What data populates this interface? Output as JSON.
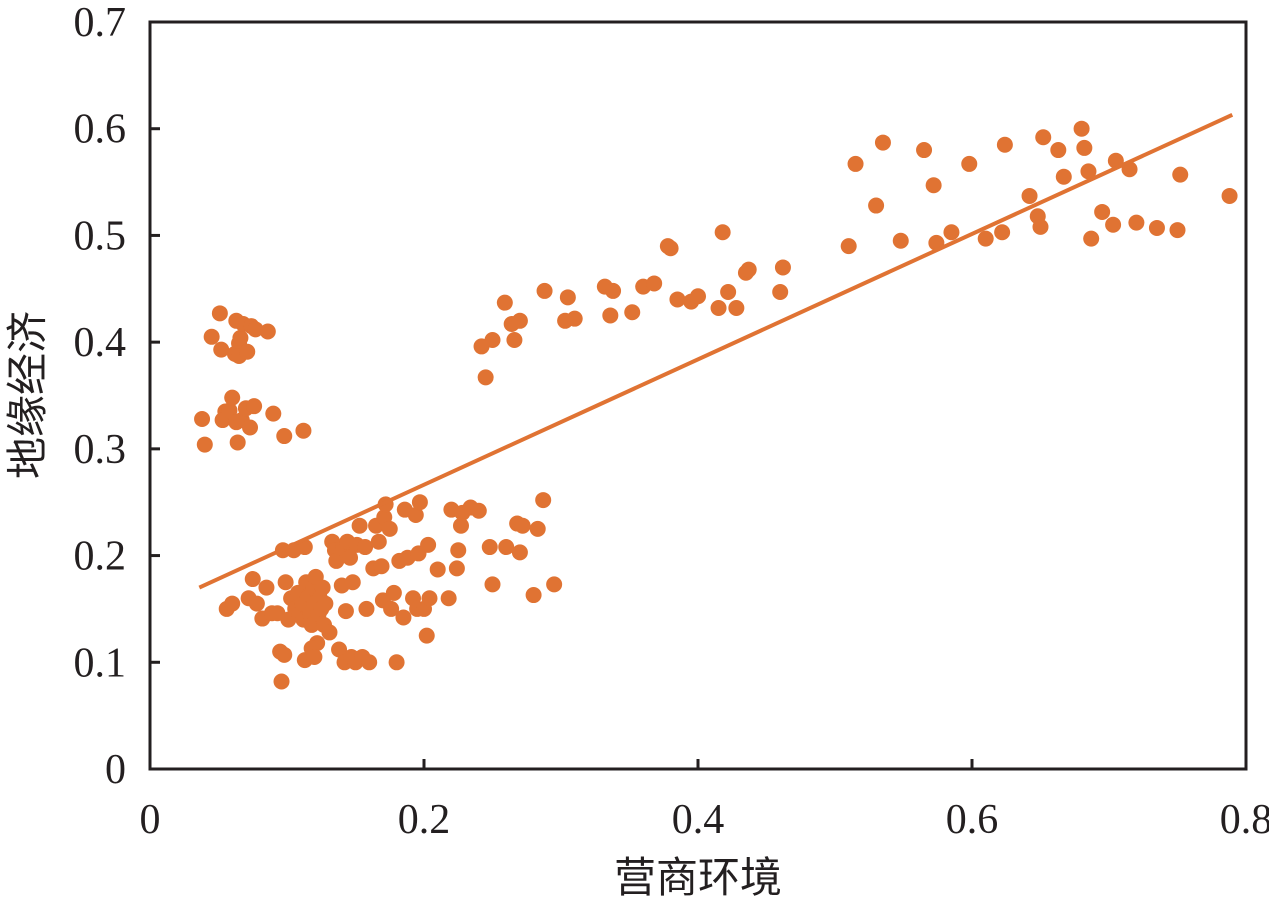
{
  "chart_data": {
    "type": "scatter",
    "title": "",
    "xlabel": "营商环境",
    "ylabel": "地缘经济",
    "xlim": [
      0,
      0.8
    ],
    "ylim": [
      0,
      0.7
    ],
    "x_ticks": [
      "0",
      "0.2",
      "0.4",
      "0.6",
      "0.8"
    ],
    "y_ticks": [
      "0",
      "0.1",
      "0.2",
      "0.3",
      "0.4",
      "0.5",
      "0.6",
      "0.7"
    ],
    "grid": false,
    "legend": "none",
    "colors": {
      "points": "#e07333",
      "fit_line": "#e07333",
      "axis": "#231f20"
    },
    "series": [
      {
        "values": [
          [
            0.038,
            0.328
          ],
          [
            0.04,
            0.304
          ],
          [
            0.045,
            0.405
          ],
          [
            0.051,
            0.427
          ],
          [
            0.052,
            0.393
          ],
          [
            0.055,
            0.335
          ],
          [
            0.053,
            0.327
          ],
          [
            0.058,
            0.336
          ],
          [
            0.06,
            0.348
          ],
          [
            0.062,
            0.389
          ],
          [
            0.063,
            0.42
          ],
          [
            0.065,
            0.399
          ],
          [
            0.065,
            0.387
          ],
          [
            0.066,
            0.404
          ],
          [
            0.068,
            0.417
          ],
          [
            0.071,
            0.391
          ],
          [
            0.074,
            0.415
          ],
          [
            0.077,
            0.412
          ],
          [
            0.086,
            0.41
          ],
          [
            0.063,
            0.325
          ],
          [
            0.067,
            0.327
          ],
          [
            0.07,
            0.338
          ],
          [
            0.073,
            0.32
          ],
          [
            0.076,
            0.34
          ],
          [
            0.064,
            0.306
          ],
          [
            0.09,
            0.333
          ],
          [
            0.098,
            0.312
          ],
          [
            0.112,
            0.317
          ],
          [
            0.056,
            0.15
          ],
          [
            0.06,
            0.155
          ],
          [
            0.072,
            0.16
          ],
          [
            0.075,
            0.178
          ],
          [
            0.078,
            0.155
          ],
          [
            0.082,
            0.141
          ],
          [
            0.085,
            0.17
          ],
          [
            0.089,
            0.146
          ],
          [
            0.093,
            0.146
          ],
          [
            0.097,
            0.205
          ],
          [
            0.099,
            0.175
          ],
          [
            0.101,
            0.14
          ],
          [
            0.103,
            0.16
          ],
          [
            0.105,
            0.205
          ],
          [
            0.106,
            0.15
          ],
          [
            0.108,
            0.165
          ],
          [
            0.109,
            0.145
          ],
          [
            0.111,
            0.155
          ],
          [
            0.112,
            0.14
          ],
          [
            0.113,
            0.208
          ],
          [
            0.114,
            0.175
          ],
          [
            0.115,
            0.16
          ],
          [
            0.116,
            0.15
          ],
          [
            0.117,
            0.145
          ],
          [
            0.118,
            0.135
          ],
          [
            0.119,
            0.17
          ],
          [
            0.12,
            0.155
          ],
          [
            0.121,
            0.18
          ],
          [
            0.122,
            0.118
          ],
          [
            0.123,
            0.145
          ],
          [
            0.124,
            0.16
          ],
          [
            0.125,
            0.15
          ],
          [
            0.126,
            0.17
          ],
          [
            0.127,
            0.135
          ],
          [
            0.128,
            0.155
          ],
          [
            0.131,
            0.128
          ],
          [
            0.133,
            0.213
          ],
          [
            0.135,
            0.205
          ],
          [
            0.136,
            0.195
          ],
          [
            0.138,
            0.112
          ],
          [
            0.14,
            0.172
          ],
          [
            0.141,
            0.207
          ],
          [
            0.142,
            0.1
          ],
          [
            0.143,
            0.148
          ],
          [
            0.144,
            0.213
          ],
          [
            0.146,
            0.198
          ],
          [
            0.147,
            0.105
          ],
          [
            0.148,
            0.175
          ],
          [
            0.15,
            0.1
          ],
          [
            0.151,
            0.21
          ],
          [
            0.153,
            0.228
          ],
          [
            0.155,
            0.105
          ],
          [
            0.157,
            0.208
          ],
          [
            0.158,
            0.15
          ],
          [
            0.16,
            0.1
          ],
          [
            0.163,
            0.188
          ],
          [
            0.165,
            0.228
          ],
          [
            0.167,
            0.213
          ],
          [
            0.169,
            0.19
          ],
          [
            0.17,
            0.158
          ],
          [
            0.171,
            0.236
          ],
          [
            0.172,
            0.248
          ],
          [
            0.175,
            0.225
          ],
          [
            0.176,
            0.15
          ],
          [
            0.178,
            0.165
          ],
          [
            0.18,
            0.1
          ],
          [
            0.182,
            0.195
          ],
          [
            0.185,
            0.142
          ],
          [
            0.186,
            0.243
          ],
          [
            0.188,
            0.198
          ],
          [
            0.192,
            0.16
          ],
          [
            0.194,
            0.238
          ],
          [
            0.195,
            0.15
          ],
          [
            0.196,
            0.202
          ],
          [
            0.197,
            0.25
          ],
          [
            0.2,
            0.15
          ],
          [
            0.202,
            0.125
          ],
          [
            0.203,
            0.21
          ],
          [
            0.204,
            0.16
          ],
          [
            0.21,
            0.187
          ],
          [
            0.218,
            0.16
          ],
          [
            0.22,
            0.243
          ],
          [
            0.224,
            0.188
          ],
          [
            0.225,
            0.205
          ],
          [
            0.227,
            0.228
          ],
          [
            0.228,
            0.24
          ],
          [
            0.234,
            0.245
          ],
          [
            0.24,
            0.242
          ],
          [
            0.248,
            0.208
          ],
          [
            0.25,
            0.173
          ],
          [
            0.26,
            0.208
          ],
          [
            0.268,
            0.23
          ],
          [
            0.27,
            0.203
          ],
          [
            0.272,
            0.228
          ],
          [
            0.28,
            0.163
          ],
          [
            0.283,
            0.225
          ],
          [
            0.287,
            0.252
          ],
          [
            0.295,
            0.173
          ],
          [
            0.096,
            0.082
          ],
          [
            0.095,
            0.11
          ],
          [
            0.098,
            0.107
          ],
          [
            0.113,
            0.102
          ],
          [
            0.118,
            0.113
          ],
          [
            0.12,
            0.105
          ],
          [
            0.242,
            0.396
          ],
          [
            0.245,
            0.367
          ],
          [
            0.25,
            0.402
          ],
          [
            0.259,
            0.437
          ],
          [
            0.264,
            0.417
          ],
          [
            0.266,
            0.402
          ],
          [
            0.27,
            0.42
          ],
          [
            0.288,
            0.448
          ],
          [
            0.303,
            0.42
          ],
          [
            0.305,
            0.442
          ],
          [
            0.31,
            0.422
          ],
          [
            0.332,
            0.452
          ],
          [
            0.336,
            0.425
          ],
          [
            0.338,
            0.448
          ],
          [
            0.352,
            0.428
          ],
          [
            0.36,
            0.452
          ],
          [
            0.368,
            0.455
          ],
          [
            0.378,
            0.49
          ],
          [
            0.38,
            0.488
          ],
          [
            0.385,
            0.44
          ],
          [
            0.395,
            0.438
          ],
          [
            0.4,
            0.443
          ],
          [
            0.415,
            0.432
          ],
          [
            0.418,
            0.503
          ],
          [
            0.422,
            0.447
          ],
          [
            0.428,
            0.432
          ],
          [
            0.435,
            0.465
          ],
          [
            0.437,
            0.468
          ],
          [
            0.46,
            0.447
          ],
          [
            0.462,
            0.47
          ],
          [
            0.51,
            0.49
          ],
          [
            0.515,
            0.567
          ],
          [
            0.53,
            0.528
          ],
          [
            0.535,
            0.587
          ],
          [
            0.548,
            0.495
          ],
          [
            0.565,
            0.58
          ],
          [
            0.572,
            0.547
          ],
          [
            0.574,
            0.493
          ],
          [
            0.585,
            0.503
          ],
          [
            0.598,
            0.567
          ],
          [
            0.61,
            0.497
          ],
          [
            0.622,
            0.503
          ],
          [
            0.624,
            0.585
          ],
          [
            0.642,
            0.537
          ],
          [
            0.648,
            0.518
          ],
          [
            0.65,
            0.508
          ],
          [
            0.652,
            0.592
          ],
          [
            0.663,
            0.58
          ],
          [
            0.667,
            0.555
          ],
          [
            0.68,
            0.6
          ],
          [
            0.682,
            0.582
          ],
          [
            0.685,
            0.56
          ],
          [
            0.687,
            0.497
          ],
          [
            0.695,
            0.522
          ],
          [
            0.703,
            0.51
          ],
          [
            0.705,
            0.57
          ],
          [
            0.715,
            0.562
          ],
          [
            0.72,
            0.512
          ],
          [
            0.735,
            0.507
          ],
          [
            0.75,
            0.505
          ],
          [
            0.752,
            0.557
          ],
          [
            0.788,
            0.537
          ]
        ]
      }
    ],
    "fit_line": {
      "x": [
        0.036,
        0.79
      ],
      "y": [
        0.17,
        0.613
      ]
    }
  }
}
